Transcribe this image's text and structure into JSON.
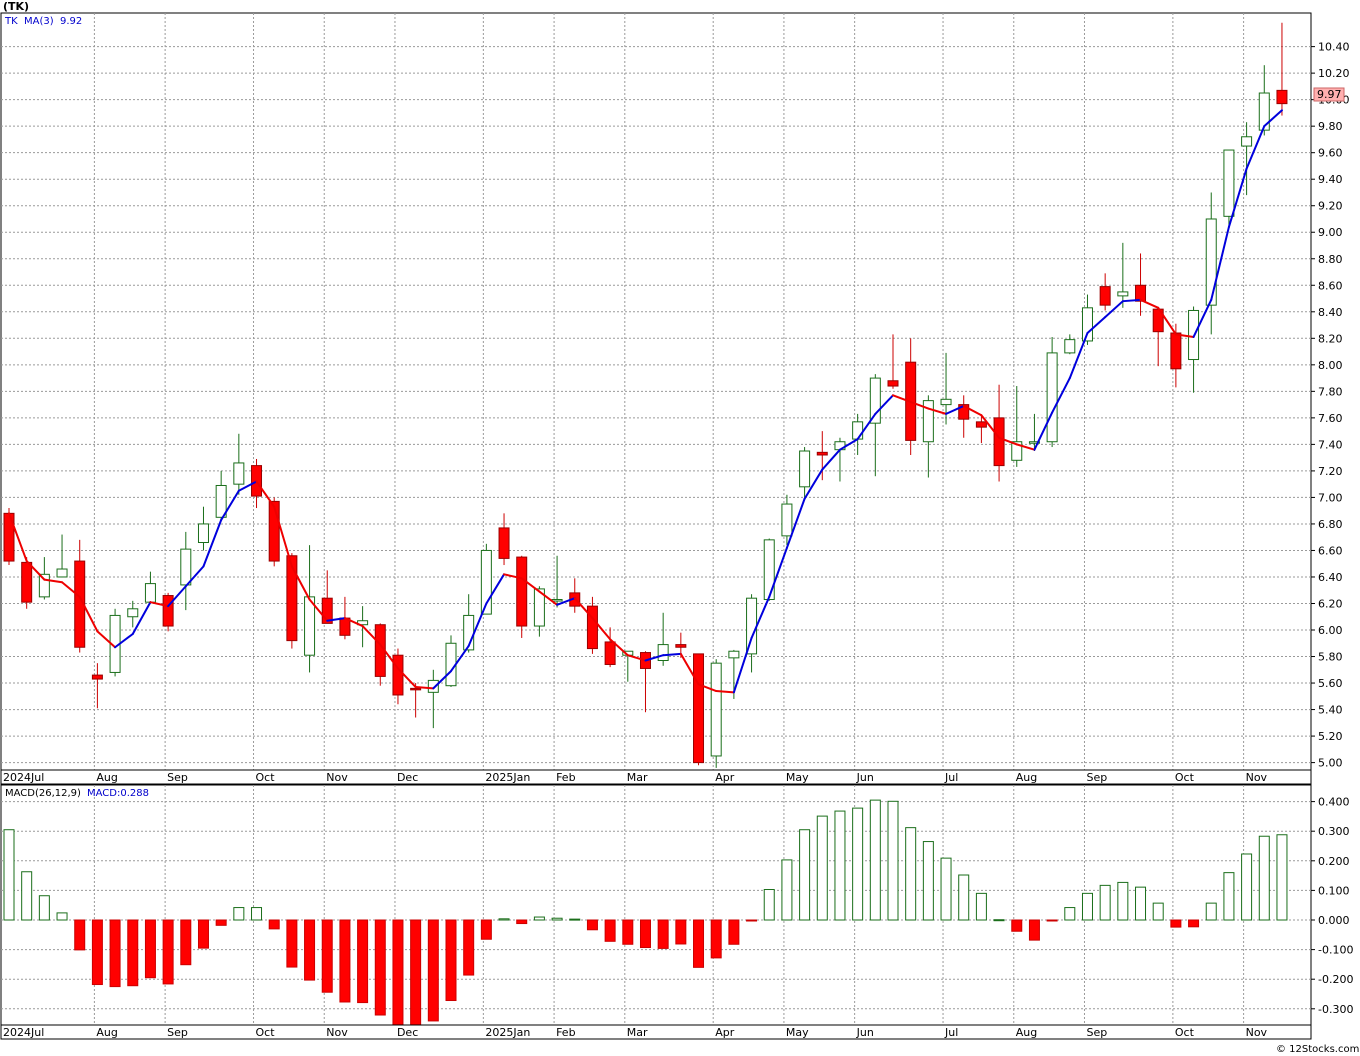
{
  "header": {
    "symbol": "(TK)",
    "ma_symbol": "TK",
    "ma_label": "MA(3)",
    "ma_value": "9.92",
    "macd_params": "MACD(26,12,9)",
    "macd_value": "MACD:0.288",
    "last_price_tag": "9.97",
    "credit": "© 12Stocks.com"
  },
  "colors": {
    "up_candle": "#1a6e1a",
    "down_candle": "#ff0000",
    "ma_rising": "#0000dd",
    "ma_falling": "#ee0000",
    "grid": "#9a9a9a",
    "price_tag_bg": "#ffb0b0"
  },
  "chart_data": [
    {
      "type": "candlestick",
      "title": "(TK)",
      "interval": "weekly",
      "ylim": [
        4.9,
        10.65
      ],
      "y_ticks": [
        "5.00",
        "5.20",
        "5.40",
        "5.60",
        "5.80",
        "6.00",
        "6.20",
        "6.40",
        "6.60",
        "6.80",
        "7.00",
        "7.20",
        "7.40",
        "7.60",
        "7.80",
        "8.00",
        "8.20",
        "8.40",
        "8.60",
        "8.80",
        "9.00",
        "9.20",
        "9.40",
        "9.60",
        "9.80",
        "10.00",
        "10.20",
        "10.40"
      ],
      "month_labels": [
        {
          "label": "2024Jul",
          "week": 0
        },
        {
          "label": "Aug",
          "week": 5
        },
        {
          "label": "Sep",
          "week": 9
        },
        {
          "label": "Oct",
          "week": 14
        },
        {
          "label": "Nov",
          "week": 18
        },
        {
          "label": "Dec",
          "week": 22
        },
        {
          "label": "2025Jan",
          "week": 27
        },
        {
          "label": "Feb",
          "week": 31
        },
        {
          "label": "Mar",
          "week": 35
        },
        {
          "label": "Apr",
          "week": 40
        },
        {
          "label": "May",
          "week": 44
        },
        {
          "label": "Jun",
          "week": 48
        },
        {
          "label": "Jul",
          "week": 53
        },
        {
          "label": "Aug",
          "week": 57
        },
        {
          "label": "Sep",
          "week": 61
        },
        {
          "label": "Oct",
          "week": 66
        },
        {
          "label": "Nov",
          "week": 70
        }
      ],
      "candles": [
        {
          "o": 6.88,
          "h": 6.92,
          "l": 6.49,
          "c": 6.52
        },
        {
          "o": 6.51,
          "h": 6.55,
          "l": 6.16,
          "c": 6.21
        },
        {
          "o": 6.25,
          "h": 6.55,
          "l": 6.23,
          "c": 6.42
        },
        {
          "o": 6.4,
          "h": 6.72,
          "l": 6.4,
          "c": 6.46
        },
        {
          "o": 6.52,
          "h": 6.68,
          "l": 5.83,
          "c": 5.87
        },
        {
          "o": 5.66,
          "h": 5.75,
          "l": 5.41,
          "c": 5.63
        },
        {
          "o": 5.68,
          "h": 6.16,
          "l": 5.65,
          "c": 6.11
        },
        {
          "o": 6.1,
          "h": 6.22,
          "l": 6.02,
          "c": 6.16
        },
        {
          "o": 6.21,
          "h": 6.44,
          "l": 6.21,
          "c": 6.35
        },
        {
          "o": 6.26,
          "h": 6.28,
          "l": 5.99,
          "c": 6.03
        },
        {
          "o": 6.34,
          "h": 6.74,
          "l": 6.15,
          "c": 6.61
        },
        {
          "o": 6.66,
          "h": 6.93,
          "l": 6.6,
          "c": 6.8
        },
        {
          "o": 6.85,
          "h": 7.2,
          "l": 6.83,
          "c": 7.09
        },
        {
          "o": 7.1,
          "h": 7.48,
          "l": 7.02,
          "c": 7.26
        },
        {
          "o": 7.24,
          "h": 7.29,
          "l": 6.92,
          "c": 7.01
        },
        {
          "o": 6.97,
          "h": 7.0,
          "l": 6.48,
          "c": 6.52
        },
        {
          "o": 6.56,
          "h": 6.58,
          "l": 5.86,
          "c": 5.92
        },
        {
          "o": 5.81,
          "h": 6.64,
          "l": 5.68,
          "c": 6.25
        },
        {
          "o": 6.24,
          "h": 6.45,
          "l": 6.05,
          "c": 6.05
        },
        {
          "o": 6.09,
          "h": 6.25,
          "l": 5.93,
          "c": 5.96
        },
        {
          "o": 6.04,
          "h": 6.18,
          "l": 5.87,
          "c": 6.07
        },
        {
          "o": 6.04,
          "h": 6.05,
          "l": 5.58,
          "c": 5.65
        },
        {
          "o": 5.81,
          "h": 5.86,
          "l": 5.44,
          "c": 5.51
        },
        {
          "o": 5.56,
          "h": 5.6,
          "l": 5.34,
          "c": 5.55
        },
        {
          "o": 5.53,
          "h": 5.7,
          "l": 5.26,
          "c": 5.62
        },
        {
          "o": 5.58,
          "h": 5.96,
          "l": 5.57,
          "c": 5.9
        },
        {
          "o": 5.85,
          "h": 6.27,
          "l": 5.83,
          "c": 6.11
        },
        {
          "o": 6.12,
          "h": 6.65,
          "l": 6.12,
          "c": 6.6
        },
        {
          "o": 6.77,
          "h": 6.88,
          "l": 6.49,
          "c": 6.54
        },
        {
          "o": 6.55,
          "h": 6.56,
          "l": 5.94,
          "c": 6.03
        },
        {
          "o": 6.03,
          "h": 6.33,
          "l": 5.95,
          "c": 6.31
        },
        {
          "o": 6.23,
          "h": 6.56,
          "l": 6.17,
          "c": 6.23
        },
        {
          "o": 6.28,
          "h": 6.39,
          "l": 6.13,
          "c": 6.18
        },
        {
          "o": 6.18,
          "h": 6.25,
          "l": 5.82,
          "c": 5.86
        },
        {
          "o": 5.91,
          "h": 6.02,
          "l": 5.72,
          "c": 5.74
        },
        {
          "o": 5.81,
          "h": 5.83,
          "l": 5.61,
          "c": 5.84
        },
        {
          "o": 5.83,
          "h": 5.84,
          "l": 5.38,
          "c": 5.71
        },
        {
          "o": 5.77,
          "h": 6.13,
          "l": 5.73,
          "c": 5.89
        },
        {
          "o": 5.89,
          "h": 5.98,
          "l": 5.79,
          "c": 5.87
        },
        {
          "o": 5.82,
          "h": 5.82,
          "l": 4.98,
          "c": 5.0
        },
        {
          "o": 5.05,
          "h": 5.78,
          "l": 4.96,
          "c": 5.75
        },
        {
          "o": 5.79,
          "h": 5.85,
          "l": 5.48,
          "c": 5.84
        },
        {
          "o": 5.82,
          "h": 6.27,
          "l": 5.68,
          "c": 6.24
        },
        {
          "o": 6.23,
          "h": 6.69,
          "l": 6.22,
          "c": 6.68
        },
        {
          "o": 6.71,
          "h": 7.02,
          "l": 6.64,
          "c": 6.95
        },
        {
          "o": 7.08,
          "h": 7.38,
          "l": 6.98,
          "c": 7.35
        },
        {
          "o": 7.34,
          "h": 7.5,
          "l": 7.13,
          "c": 7.32
        },
        {
          "o": 7.36,
          "h": 7.45,
          "l": 7.12,
          "c": 7.42
        },
        {
          "o": 7.44,
          "h": 7.63,
          "l": 7.32,
          "c": 7.57
        },
        {
          "o": 7.56,
          "h": 7.93,
          "l": 7.16,
          "c": 7.9
        },
        {
          "o": 7.88,
          "h": 8.23,
          "l": 7.82,
          "c": 7.84
        },
        {
          "o": 8.02,
          "h": 8.2,
          "l": 7.32,
          "c": 7.43
        },
        {
          "o": 7.42,
          "h": 7.77,
          "l": 7.15,
          "c": 7.73
        },
        {
          "o": 7.7,
          "h": 8.09,
          "l": 7.55,
          "c": 7.74
        },
        {
          "o": 7.7,
          "h": 7.77,
          "l": 7.45,
          "c": 7.59
        },
        {
          "o": 7.57,
          "h": 7.62,
          "l": 7.41,
          "c": 7.53
        },
        {
          "o": 7.6,
          "h": 7.85,
          "l": 7.12,
          "c": 7.24
        },
        {
          "o": 7.28,
          "h": 7.84,
          "l": 7.23,
          "c": 7.42
        },
        {
          "o": 7.41,
          "h": 7.63,
          "l": 7.35,
          "c": 7.42
        },
        {
          "o": 7.42,
          "h": 8.21,
          "l": 7.38,
          "c": 8.09
        },
        {
          "o": 8.09,
          "h": 8.23,
          "l": 8.08,
          "c": 8.19
        },
        {
          "o": 8.18,
          "h": 8.53,
          "l": 8.15,
          "c": 8.43
        },
        {
          "o": 8.59,
          "h": 8.69,
          "l": 8.41,
          "c": 8.45
        },
        {
          "o": 8.52,
          "h": 8.92,
          "l": 8.43,
          "c": 8.55
        },
        {
          "o": 8.6,
          "h": 8.84,
          "l": 8.37,
          "c": 8.48
        },
        {
          "o": 8.42,
          "h": 8.43,
          "l": 7.99,
          "c": 8.25
        },
        {
          "o": 8.24,
          "h": 8.31,
          "l": 7.83,
          "c": 7.97
        },
        {
          "o": 8.04,
          "h": 8.44,
          "l": 7.79,
          "c": 8.41
        },
        {
          "o": 8.45,
          "h": 9.3,
          "l": 8.23,
          "c": 9.1
        },
        {
          "o": 9.12,
          "h": 9.62,
          "l": 9.04,
          "c": 9.62
        },
        {
          "o": 9.65,
          "h": 9.83,
          "l": 9.28,
          "c": 9.72
        },
        {
          "o": 9.77,
          "h": 10.26,
          "l": 9.73,
          "c": 10.05
        },
        {
          "o": 10.07,
          "h": 10.58,
          "l": 9.88,
          "c": 9.97
        }
      ],
      "ma3": [
        6.88,
        6.52,
        6.38,
        6.36,
        6.25,
        5.99,
        5.87,
        5.97,
        6.21,
        6.18,
        6.33,
        6.48,
        6.83,
        7.05,
        7.12,
        6.93,
        6.48,
        6.23,
        6.07,
        6.09,
        6.03,
        5.89,
        5.71,
        5.57,
        5.56,
        5.69,
        5.88,
        6.2,
        6.42,
        6.39,
        6.29,
        6.19,
        6.24,
        6.09,
        5.93,
        5.81,
        5.77,
        5.81,
        5.82,
        5.59,
        5.54,
        5.53,
        5.94,
        6.25,
        6.62,
        6.99,
        7.21,
        7.36,
        7.44,
        7.63,
        7.77,
        7.72,
        7.67,
        7.63,
        7.69,
        7.62,
        7.45,
        7.4,
        7.36,
        7.64,
        7.9,
        8.24,
        8.36,
        8.48,
        8.49,
        8.43,
        8.23,
        8.21,
        8.49,
        9.04,
        9.48,
        9.8,
        9.92
      ],
      "macd": [
        0.305,
        0.163,
        0.082,
        0.024,
        -0.101,
        -0.218,
        -0.225,
        -0.222,
        -0.195,
        -0.216,
        -0.151,
        -0.095,
        -0.018,
        0.042,
        0.042,
        -0.03,
        -0.159,
        -0.203,
        -0.244,
        -0.277,
        -0.279,
        -0.321,
        -0.364,
        -0.355,
        -0.341,
        -0.272,
        -0.186,
        -0.065,
        0.004,
        -0.012,
        0.01,
        0.006,
        0.003,
        -0.033,
        -0.072,
        -0.082,
        -0.093,
        -0.096,
        -0.081,
        -0.16,
        -0.128,
        -0.082,
        -0.002,
        0.103,
        0.203,
        0.305,
        0.351,
        0.368,
        0.378,
        0.405,
        0.401,
        0.312,
        0.265,
        0.209,
        0.152,
        0.09,
        0.001,
        -0.038,
        -0.068,
        -0.003,
        0.042,
        0.09,
        0.117,
        0.127,
        0.111,
        0.057,
        -0.024,
        -0.023,
        0.057,
        0.16,
        0.223,
        0.283,
        0.288
      ],
      "macd_ylim": [
        -0.36,
        0.42
      ],
      "macd_y_ticks": [
        "0.400",
        "0.300",
        "0.200",
        "0.100",
        "0.000",
        "-0.100",
        "-0.200",
        "-0.300"
      ]
    }
  ]
}
